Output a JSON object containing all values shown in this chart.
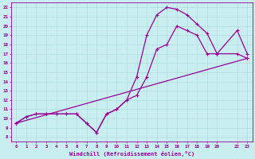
{
  "xlabel": "Windchill (Refroidissement éolien,°C)",
  "xlim": [
    -0.5,
    23.5
  ],
  "ylim": [
    7.5,
    22.5
  ],
  "xticks": [
    0,
    1,
    2,
    3,
    4,
    5,
    6,
    7,
    8,
    9,
    10,
    11,
    12,
    13,
    14,
    15,
    16,
    17,
    18,
    19,
    20,
    22,
    23
  ],
  "xtick_labels": [
    "0",
    "1",
    "2",
    "3",
    "4",
    "5",
    "6",
    "7",
    "8",
    "9",
    "10",
    "11",
    "12",
    "13",
    "14",
    "15",
    "16",
    "17",
    "18",
    "19",
    "20",
    "22",
    "23"
  ],
  "yticks": [
    8,
    9,
    10,
    11,
    12,
    13,
    14,
    15,
    16,
    17,
    18,
    19,
    20,
    21,
    22
  ],
  "bg_color": "#c8eef0",
  "line_color": "#990099",
  "grid_color": "#b0dde0",
  "curve1_x": [
    0,
    1,
    2,
    3,
    4,
    5,
    6,
    7,
    8,
    9,
    10,
    11,
    12,
    13,
    14,
    15,
    16,
    17,
    18,
    19,
    20,
    22,
    23
  ],
  "curve1_y": [
    9.5,
    10.2,
    10.5,
    10.5,
    10.5,
    10.5,
    10.5,
    9.5,
    8.5,
    10.5,
    11.0,
    12.0,
    14.5,
    19.0,
    21.2,
    22.0,
    21.8,
    21.2,
    20.2,
    19.2,
    17.0,
    19.5,
    17.0
  ],
  "curve2_x": [
    0,
    1,
    2,
    3,
    4,
    5,
    6,
    7,
    8,
    9,
    10,
    11,
    12,
    13,
    14,
    15,
    16,
    17,
    18,
    19,
    20,
    22,
    23
  ],
  "curve2_y": [
    9.5,
    10.2,
    10.5,
    10.5,
    10.5,
    10.5,
    10.5,
    9.5,
    8.5,
    10.5,
    11.0,
    12.0,
    12.5,
    14.5,
    17.5,
    18.0,
    20.0,
    19.5,
    19.0,
    17.0,
    17.0,
    17.0,
    16.5
  ],
  "curve3_x": [
    0,
    23
  ],
  "curve3_y": [
    9.5,
    16.5
  ],
  "lw": 0.9,
  "ms": 3.5
}
